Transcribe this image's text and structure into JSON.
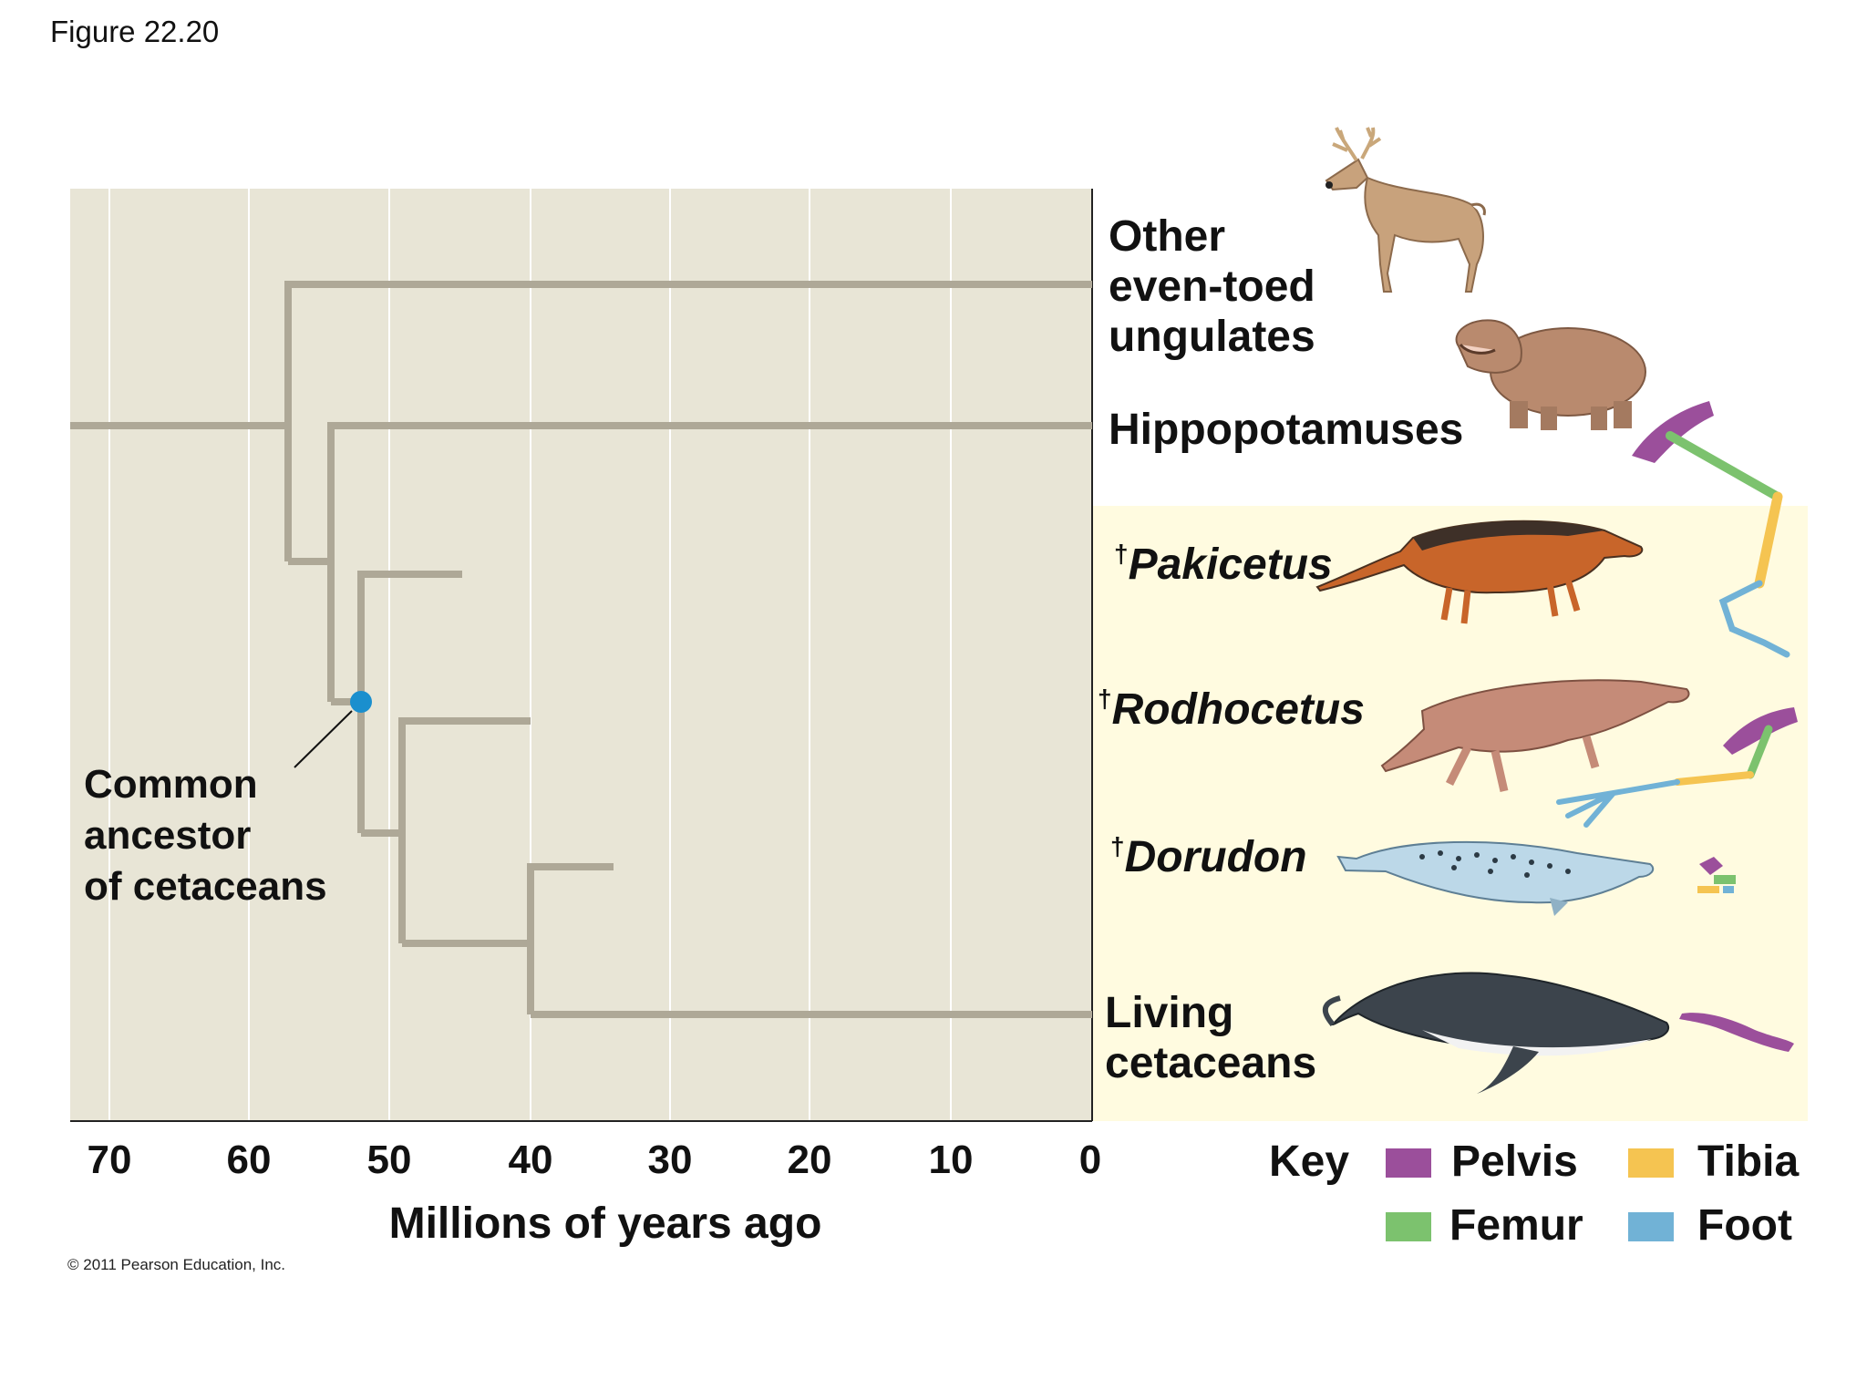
{
  "figure_label": "Figure 22.20",
  "copyright": "© 2011 Pearson Education, Inc.",
  "colors": {
    "plot_bg": "#e8e5d6",
    "cetacean_bg": "#fffbe0",
    "gridline": "#ffffff",
    "branch": "#aea897",
    "ancestor_node": "#1a8fce",
    "pelvis": "#9b4f9b",
    "femur": "#7cc26e",
    "tibia": "#f5c451",
    "foot": "#71b2d6"
  },
  "axis": {
    "ticks": [
      "70",
      "60",
      "50",
      "40",
      "30",
      "20",
      "10",
      "0"
    ],
    "title": "Millions of years ago"
  },
  "taxa": {
    "ungulates": [
      "Other",
      "even-toed",
      "ungulates"
    ],
    "hippos": "Hippopotamuses",
    "pakicetus": {
      "dagger": "†",
      "name": "Pakicetus"
    },
    "rodhocetus": {
      "dagger": "†",
      "name": "Rodhocetus"
    },
    "dorudon": {
      "dagger": "†",
      "name": "Dorudon"
    },
    "living": [
      "Living",
      "cetaceans"
    ]
  },
  "ancestor_label": [
    "Common",
    "ancestor",
    "of cetaceans"
  ],
  "key": {
    "title": "Key",
    "pelvis": "Pelvis",
    "femur": "Femur",
    "tibia": "Tibia",
    "foot": "Foot"
  },
  "animal_icons": [
    "deer-icon",
    "hippopotamus-icon",
    "pakicetus-icon",
    "rodhocetus-icon",
    "dorudon-icon",
    "humpback-whale-icon"
  ],
  "limb_icons": [
    "hippo-hindlimb-icon",
    "pakicetus-hindlimb-icon",
    "rodhocetus-hindlimb-icon",
    "dorudon-hindlimb-icon",
    "whale-pelvis-icon"
  ]
}
